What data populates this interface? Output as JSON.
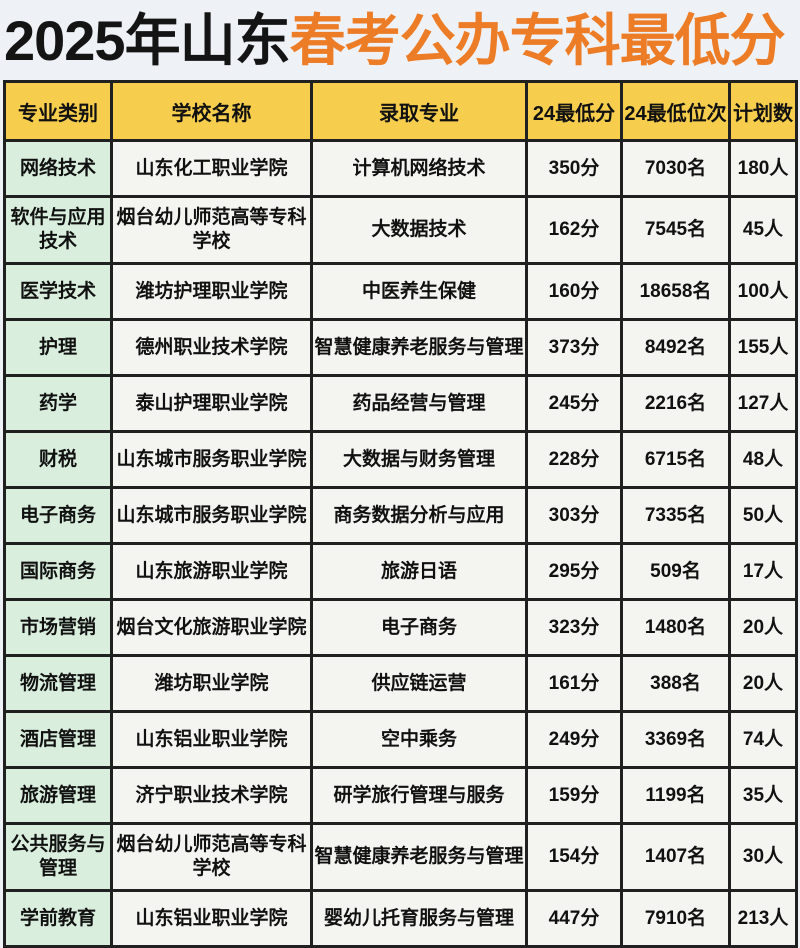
{
  "title": {
    "black_part": "2025年山东",
    "orange_part": "春考公办专科最低分"
  },
  "colors": {
    "page_bg": "#EEF1F6",
    "title_black": "#141414",
    "title_orange": "#ED7C26",
    "header_yellow": "#F6CD4C",
    "category_green": "#D9EEDD",
    "cell_bg": "#F4F4F1",
    "border": "#202020"
  },
  "table": {
    "headers": [
      "专业类别",
      "学校名称",
      "录取专业",
      "24最低分",
      "24最低位次",
      "计划数"
    ],
    "rows": [
      {
        "category": "网络技术",
        "school": "山东化工职业学院",
        "major": "计算机网络技术",
        "min_score": "350分",
        "min_rank": "7030名",
        "plan": "180人"
      },
      {
        "category": "软件与应用技术",
        "school": "烟台幼儿师范高等专科学校",
        "major": "大数据技术",
        "min_score": "162分",
        "min_rank": "7545名",
        "plan": "45人"
      },
      {
        "category": "医学技术",
        "school": "潍坊护理职业学院",
        "major": "中医养生保健",
        "min_score": "160分",
        "min_rank": "18658名",
        "plan": "100人"
      },
      {
        "category": "护理",
        "school": "德州职业技术学院",
        "major": "智慧健康养老服务与管理",
        "min_score": "373分",
        "min_rank": "8492名",
        "plan": "155人"
      },
      {
        "category": "药学",
        "school": "泰山护理职业学院",
        "major": "药品经营与管理",
        "min_score": "245分",
        "min_rank": "2216名",
        "plan": "127人"
      },
      {
        "category": "财税",
        "school": "山东城市服务职业学院",
        "major": "大数据与财务管理",
        "min_score": "228分",
        "min_rank": "6715名",
        "plan": "48人"
      },
      {
        "category": "电子商务",
        "school": "山东城市服务职业学院",
        "major": "商务数据分析与应用",
        "min_score": "303分",
        "min_rank": "7335名",
        "plan": "50人"
      },
      {
        "category": "国际商务",
        "school": "山东旅游职业学院",
        "major": "旅游日语",
        "min_score": "295分",
        "min_rank": "509名",
        "plan": "17人"
      },
      {
        "category": "市场营销",
        "school": "烟台文化旅游职业学院",
        "major": "电子商务",
        "min_score": "323分",
        "min_rank": "1480名",
        "plan": "20人"
      },
      {
        "category": "物流管理",
        "school": "潍坊职业学院",
        "major": "供应链运营",
        "min_score": "161分",
        "min_rank": "388名",
        "plan": "20人"
      },
      {
        "category": "酒店管理",
        "school": "山东铝业职业学院",
        "major": "空中乘务",
        "min_score": "249分",
        "min_rank": "3369名",
        "plan": "74人"
      },
      {
        "category": "旅游管理",
        "school": "济宁职业技术学院",
        "major": "研学旅行管理与服务",
        "min_score": "159分",
        "min_rank": "1199名",
        "plan": "35人"
      },
      {
        "category": "公共服务与管理",
        "school": "烟台幼儿师范高等专科学校",
        "major": "智慧健康养老服务与管理",
        "min_score": "154分",
        "min_rank": "1407名",
        "plan": "30人"
      },
      {
        "category": "学前教育",
        "school": "山东铝业职业学院",
        "major": "婴幼儿托育服务与管理",
        "min_score": "447分",
        "min_rank": "7910名",
        "plan": "213人"
      }
    ]
  }
}
